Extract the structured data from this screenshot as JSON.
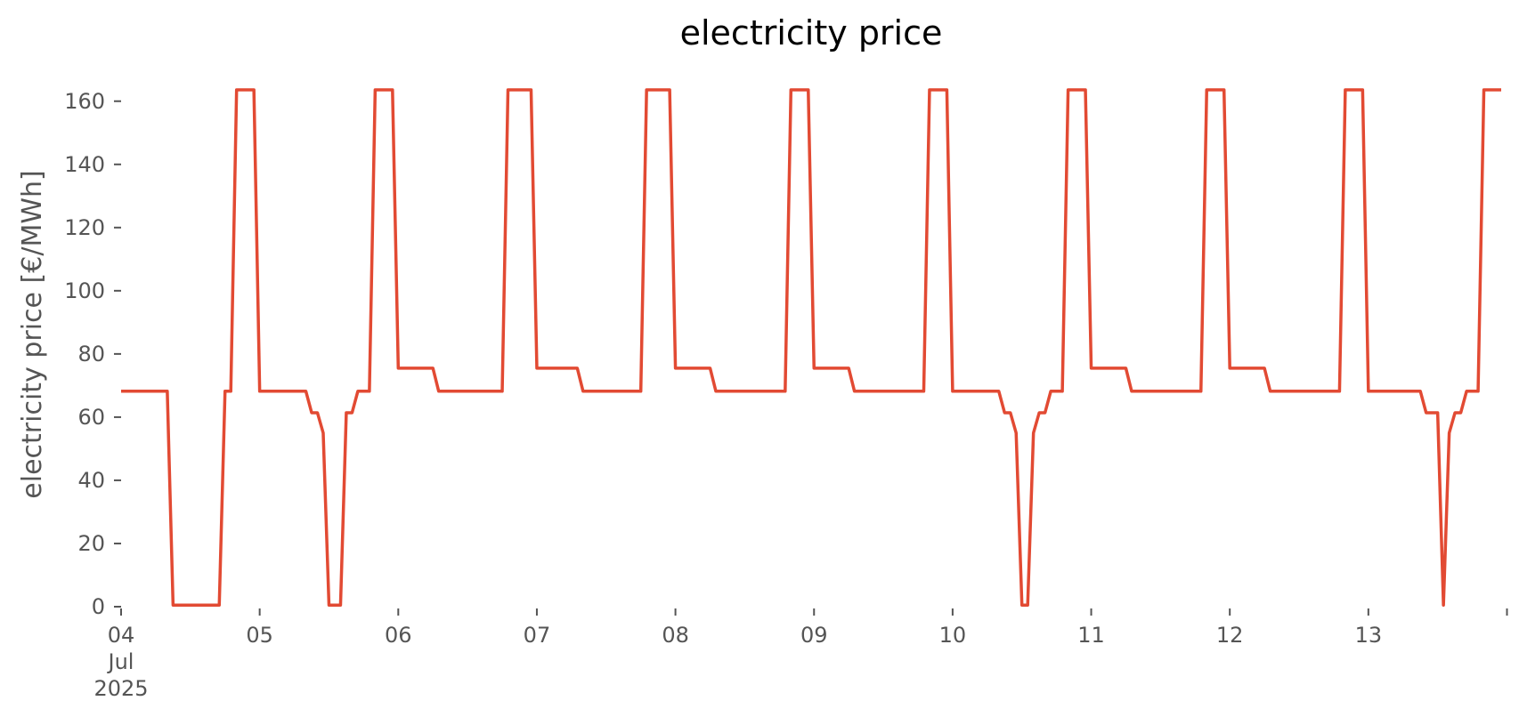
{
  "chart_data": {
    "type": "line",
    "title": "electricity price",
    "xlabel": "",
    "ylabel": "electricity price [€/MWh]",
    "ylim": [
      0,
      165
    ],
    "xlim": [
      "2025-07-04T00:00",
      "2025-07-13T23:00"
    ],
    "yticks": [
      0,
      20,
      40,
      60,
      80,
      100,
      120,
      140,
      160
    ],
    "xticks": [
      {
        "date": "2025-07-04",
        "lines": [
          "04",
          "Jul",
          "2025"
        ]
      },
      {
        "date": "2025-07-05",
        "lines": [
          "05"
        ]
      },
      {
        "date": "2025-07-06",
        "lines": [
          "06"
        ]
      },
      {
        "date": "2025-07-07",
        "lines": [
          "07"
        ]
      },
      {
        "date": "2025-07-08",
        "lines": [
          "08"
        ]
      },
      {
        "date": "2025-07-09",
        "lines": [
          "09"
        ]
      },
      {
        "date": "2025-07-10",
        "lines": [
          "10"
        ]
      },
      {
        "date": "2025-07-11",
        "lines": [
          "11"
        ]
      },
      {
        "date": "2025-07-12",
        "lines": [
          "12"
        ]
      },
      {
        "date": "2025-07-13",
        "lines": [
          "13"
        ]
      },
      {
        "date": "2025-07-14",
        "lines": []
      }
    ],
    "grid": false,
    "series": [
      {
        "color": "#e24a33",
        "points": [
          [
            "2025-07-04T00:00",
            68.2
          ],
          [
            "2025-07-04T08:00",
            68.2
          ],
          [
            "2025-07-04T09:00",
            0.5
          ],
          [
            "2025-07-04T17:00",
            0.5
          ],
          [
            "2025-07-04T18:00",
            68.2
          ],
          [
            "2025-07-04T19:00",
            68.2
          ],
          [
            "2025-07-04T20:00",
            163.6
          ],
          [
            "2025-07-04T23:00",
            163.6
          ],
          [
            "2025-07-05T00:00",
            68.2
          ],
          [
            "2025-07-05T08:00",
            68.2
          ],
          [
            "2025-07-05T09:00",
            61.4
          ],
          [
            "2025-07-05T10:00",
            61.4
          ],
          [
            "2025-07-05T11:00",
            55.0
          ],
          [
            "2025-07-05T12:00",
            0.5
          ],
          [
            "2025-07-05T14:00",
            0.5
          ],
          [
            "2025-07-05T15:00",
            61.4
          ],
          [
            "2025-07-05T16:00",
            61.4
          ],
          [
            "2025-07-05T17:00",
            68.2
          ],
          [
            "2025-07-05T19:00",
            68.2
          ],
          [
            "2025-07-05T20:00",
            163.6
          ],
          [
            "2025-07-05T23:00",
            163.6
          ],
          [
            "2025-07-06T00:00",
            75.5
          ],
          [
            "2025-07-06T06:00",
            75.5
          ],
          [
            "2025-07-06T07:00",
            68.2
          ],
          [
            "2025-07-06T18:00",
            68.2
          ],
          [
            "2025-07-06T19:00",
            163.6
          ],
          [
            "2025-07-06T23:00",
            163.6
          ],
          [
            "2025-07-07T00:00",
            75.5
          ],
          [
            "2025-07-07T07:00",
            75.5
          ],
          [
            "2025-07-07T08:00",
            68.2
          ],
          [
            "2025-07-07T18:00",
            68.2
          ],
          [
            "2025-07-07T19:00",
            163.6
          ],
          [
            "2025-07-07T23:00",
            163.6
          ],
          [
            "2025-07-08T00:00",
            75.5
          ],
          [
            "2025-07-08T06:00",
            75.5
          ],
          [
            "2025-07-08T07:00",
            68.2
          ],
          [
            "2025-07-08T19:00",
            68.2
          ],
          [
            "2025-07-08T20:00",
            163.6
          ],
          [
            "2025-07-08T23:00",
            163.6
          ],
          [
            "2025-07-09T00:00",
            75.5
          ],
          [
            "2025-07-09T06:00",
            75.5
          ],
          [
            "2025-07-09T07:00",
            68.2
          ],
          [
            "2025-07-09T19:00",
            68.2
          ],
          [
            "2025-07-09T20:00",
            163.6
          ],
          [
            "2025-07-09T23:00",
            163.6
          ],
          [
            "2025-07-10T00:00",
            68.2
          ],
          [
            "2025-07-10T08:00",
            68.2
          ],
          [
            "2025-07-10T09:00",
            61.4
          ],
          [
            "2025-07-10T10:00",
            61.4
          ],
          [
            "2025-07-10T11:00",
            55.0
          ],
          [
            "2025-07-10T12:00",
            0.5
          ],
          [
            "2025-07-10T13:00",
            0.5
          ],
          [
            "2025-07-10T14:00",
            55.0
          ],
          [
            "2025-07-10T15:00",
            61.4
          ],
          [
            "2025-07-10T16:00",
            61.4
          ],
          [
            "2025-07-10T17:00",
            68.2
          ],
          [
            "2025-07-10T19:00",
            68.2
          ],
          [
            "2025-07-10T20:00",
            163.6
          ],
          [
            "2025-07-10T23:00",
            163.6
          ],
          [
            "2025-07-11T00:00",
            75.5
          ],
          [
            "2025-07-11T06:00",
            75.5
          ],
          [
            "2025-07-11T07:00",
            68.2
          ],
          [
            "2025-07-11T19:00",
            68.2
          ],
          [
            "2025-07-11T20:00",
            163.6
          ],
          [
            "2025-07-11T23:00",
            163.6
          ],
          [
            "2025-07-12T00:00",
            75.5
          ],
          [
            "2025-07-12T06:00",
            75.5
          ],
          [
            "2025-07-12T07:00",
            68.2
          ],
          [
            "2025-07-12T19:00",
            68.2
          ],
          [
            "2025-07-12T20:00",
            163.6
          ],
          [
            "2025-07-12T23:00",
            163.6
          ],
          [
            "2025-07-13T00:00",
            68.2
          ],
          [
            "2025-07-13T09:00",
            68.2
          ],
          [
            "2025-07-13T10:00",
            61.4
          ],
          [
            "2025-07-13T12:00",
            61.4
          ],
          [
            "2025-07-13T13:00",
            0.5
          ],
          [
            "2025-07-13T14:00",
            55.0
          ],
          [
            "2025-07-13T15:00",
            61.4
          ],
          [
            "2025-07-13T16:00",
            61.4
          ],
          [
            "2025-07-13T17:00",
            68.2
          ],
          [
            "2025-07-13T19:00",
            68.2
          ],
          [
            "2025-07-13T20:00",
            163.6
          ],
          [
            "2025-07-13T23:00",
            163.6
          ]
        ]
      }
    ]
  }
}
